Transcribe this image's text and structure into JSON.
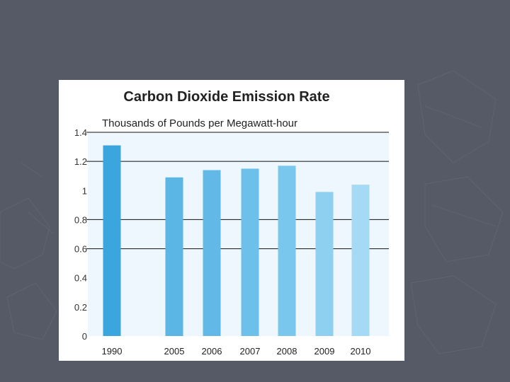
{
  "chart_data": {
    "type": "bar",
    "title": "Carbon Dioxide Emission Rate",
    "subtitle": "Thousands of Pounds per Megawatt-hour",
    "categories": [
      "1990",
      "2005",
      "2006",
      "2007",
      "2008",
      "2009",
      "2010"
    ],
    "values": [
      1.31,
      1.09,
      1.14,
      1.15,
      1.17,
      0.99,
      1.04
    ],
    "ylim": [
      0,
      1.4
    ],
    "yticks": [
      0,
      0.2,
      0.4,
      0.6,
      0.8,
      1,
      1.2,
      1.4
    ],
    "ytick_labels": [
      "0",
      "0.2",
      "0.4",
      "0.6",
      "0.8",
      "1",
      "1.2",
      "1.4"
    ],
    "gridlines_at": [
      0.6,
      0.8,
      1.2,
      1.4
    ],
    "xlabel": "",
    "ylabel": "",
    "bar_colors": [
      "#3aa6dd",
      "#5bb6e6",
      "#62b9e7",
      "#6dc0ea",
      "#7ac7ed",
      "#8dd0f0",
      "#a4daf3"
    ]
  },
  "colors": {
    "slide_background": "#565a66",
    "panel_background": "#ffffff",
    "plot_background": "#edf7fd"
  }
}
